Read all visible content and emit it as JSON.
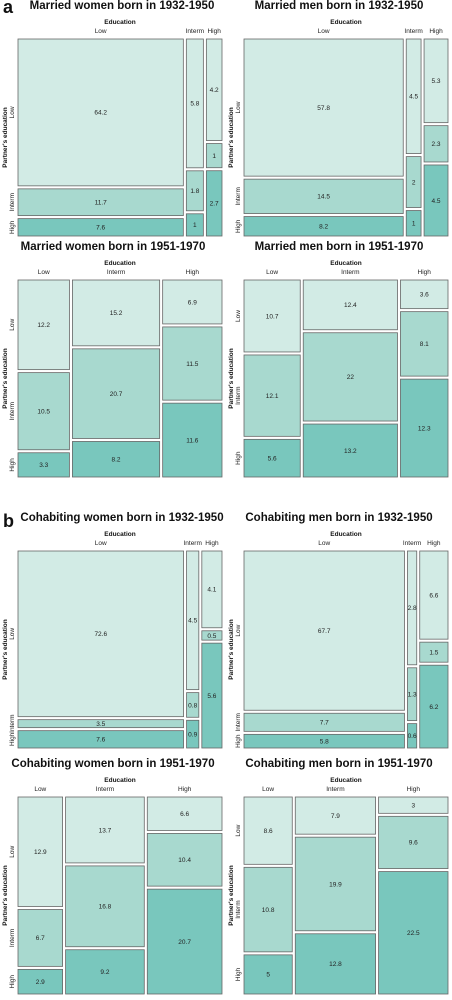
{
  "panel_labels": [
    "a",
    "b"
  ],
  "legend_titles": {
    "x": "Education",
    "y": "Partner's education"
  },
  "categories": [
    "Low",
    "Interm",
    "High"
  ],
  "colors": {
    "Low": "#d2ebe5",
    "Interm": "#a8d9cf",
    "High": "#79c7bd",
    "border": "#666666"
  },
  "chart_data": [
    {
      "type": "mosaic",
      "panel": "a",
      "title": "Married women born in 1932-1950",
      "xlabel": "Education",
      "ylabel": "Partner's education",
      "x_categories": [
        "Low",
        "Interm",
        "High"
      ],
      "y_categories": [
        "Low",
        "Interm",
        "High"
      ],
      "cells": {
        "Low": [
          64.2,
          11.7,
          7.6
        ],
        "Interm": [
          5.8,
          1.8,
          1
        ],
        "High": [
          4.2,
          1,
          2.7
        ]
      }
    },
    {
      "type": "mosaic",
      "panel": "a",
      "title": "Married men born in 1932-1950",
      "xlabel": "Education",
      "ylabel": "Partner's education",
      "x_categories": [
        "Low",
        "Interm",
        "High"
      ],
      "y_categories": [
        "Low",
        "Interm",
        "High"
      ],
      "cells": {
        "Low": [
          57.8,
          14.5,
          8.2
        ],
        "Interm": [
          4.5,
          2,
          1
        ],
        "High": [
          5.3,
          2.3,
          4.5
        ]
      }
    },
    {
      "type": "mosaic",
      "panel": "a",
      "title": "Married women born in 1951-1970",
      "xlabel": "Education",
      "ylabel": "Partner's education",
      "x_categories": [
        "Low",
        "Interm",
        "High"
      ],
      "y_categories": [
        "Low",
        "Interm",
        "High"
      ],
      "cells": {
        "Low": [
          12.2,
          10.5,
          3.3
        ],
        "Interm": [
          15.2,
          20.7,
          8.2
        ],
        "High": [
          6.9,
          11.5,
          11.6
        ]
      }
    },
    {
      "type": "mosaic",
      "panel": "a",
      "title": "Married men born in 1951-1970",
      "xlabel": "Education",
      "ylabel": "Partner's education",
      "x_categories": [
        "Low",
        "Interm",
        "High"
      ],
      "y_categories": [
        "Low",
        "Interm",
        "High"
      ],
      "cells": {
        "Low": [
          10.7,
          12.1,
          5.6
        ],
        "Interm": [
          12.4,
          22,
          13.2
        ],
        "High": [
          3.6,
          8.1,
          12.3
        ]
      }
    },
    {
      "type": "mosaic",
      "panel": "b",
      "title": "Cohabiting women born in 1932-1950",
      "xlabel": "Education",
      "ylabel": "Partner's education",
      "x_categories": [
        "Low",
        "Interm",
        "High"
      ],
      "y_categories": [
        "Low",
        "Interm",
        "High"
      ],
      "cells": {
        "Low": [
          72.6,
          3.5,
          7.6
        ],
        "Interm": [
          4.5,
          0.8,
          0.9
        ],
        "High": [
          4.1,
          0.5,
          5.6
        ]
      }
    },
    {
      "type": "mosaic",
      "panel": "b",
      "title": "Cohabiting men born in 1932-1950",
      "xlabel": "Education",
      "ylabel": "Partner's education",
      "x_categories": [
        "Low",
        "Interm",
        "High"
      ],
      "y_categories": [
        "Low",
        "Interm",
        "High"
      ],
      "cells": {
        "Low": [
          67.7,
          7.7,
          5.8
        ],
        "Interm": [
          2.8,
          1.3,
          0.6
        ],
        "High": [
          6.6,
          1.5,
          6.2
        ]
      }
    },
    {
      "type": "mosaic",
      "panel": "b",
      "title": "Cohabiting women born in 1951-1970",
      "xlabel": "Education",
      "ylabel": "Partner's education",
      "x_categories": [
        "Low",
        "Interm",
        "High"
      ],
      "y_categories": [
        "Low",
        "Interm",
        "High"
      ],
      "cells": {
        "Low": [
          12.9,
          6.7,
          2.9
        ],
        "Interm": [
          13.7,
          16.8,
          9.2
        ],
        "High": [
          6.6,
          10.4,
          20.7
        ]
      }
    },
    {
      "type": "mosaic",
      "panel": "b",
      "title": "Cohabiting men born in 1951-1970",
      "xlabel": "Education",
      "ylabel": "Partner's education",
      "x_categories": [
        "Low",
        "Interm",
        "High"
      ],
      "y_categories": [
        "Low",
        "Interm",
        "High"
      ],
      "cells": {
        "Low": [
          8.6,
          10.8,
          5
        ],
        "Interm": [
          7.9,
          19.9,
          12.8
        ],
        "High": [
          3,
          9.6,
          22.5
        ]
      }
    }
  ]
}
